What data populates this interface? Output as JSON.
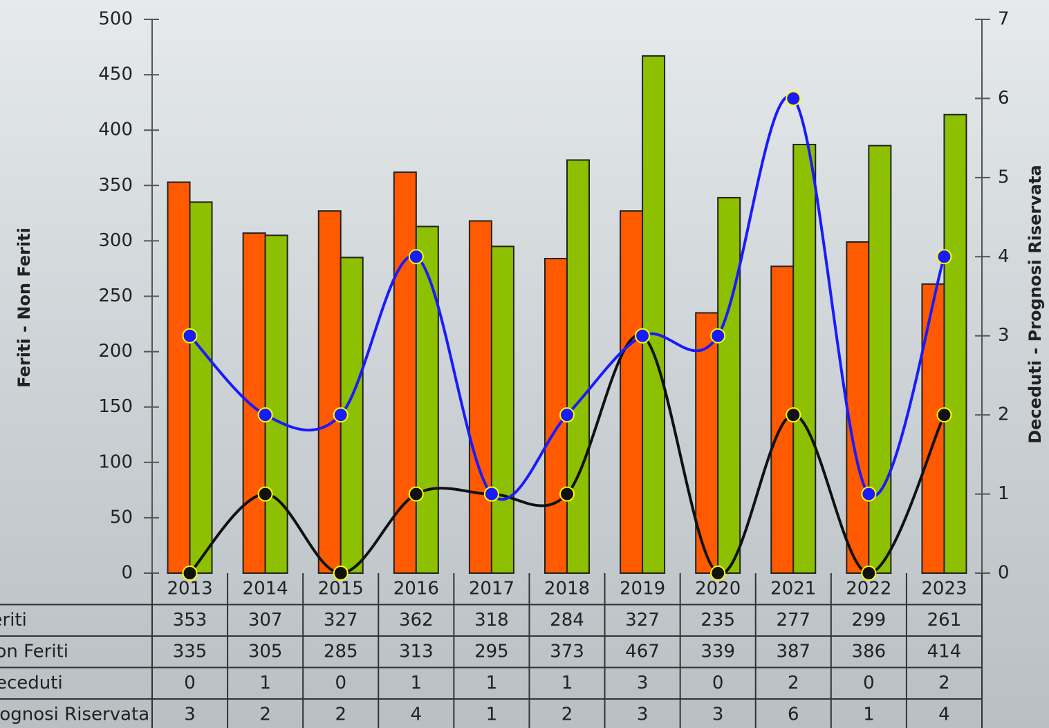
{
  "chart_data": {
    "type": "bar-line",
    "y_label": "Feriti - Non Feriti",
    "y2_label": "Deceduti - Prognosi Riservata",
    "categories": [
      "2013",
      "2014",
      "2015",
      "2016",
      "2017",
      "2018",
      "2019",
      "2020",
      "2021",
      "2022",
      "2023"
    ],
    "series": [
      {
        "name": "Feriti",
        "type": "bar",
        "color": "#ff5a00",
        "values": [
          353,
          307,
          327,
          362,
          318,
          284,
          327,
          235,
          277,
          299,
          261
        ]
      },
      {
        "name": "Non Feriti",
        "type": "bar",
        "color": "#8cc000",
        "values": [
          335,
          305,
          285,
          313,
          295,
          373,
          467,
          339,
          387,
          386,
          414
        ]
      },
      {
        "name": "Deceduti",
        "type": "line",
        "axis": "y2",
        "color": "#111111",
        "values": [
          0,
          1,
          0,
          1,
          1,
          1,
          3,
          0,
          2,
          0,
          2
        ]
      },
      {
        "name": "Prognosi Riservata",
        "type": "line",
        "axis": "y2",
        "color": "#1a1aff",
        "values": [
          3,
          2,
          2,
          4,
          1,
          2,
          3,
          3,
          6,
          1,
          4
        ]
      }
    ],
    "ylim": [
      0,
      500
    ],
    "yticks": [
      0,
      50,
      100,
      150,
      200,
      250,
      300,
      350,
      400,
      450,
      500
    ],
    "y2lim": [
      0,
      7
    ],
    "y2ticks": [
      0,
      1,
      2,
      3,
      4,
      5,
      6,
      7
    ]
  }
}
